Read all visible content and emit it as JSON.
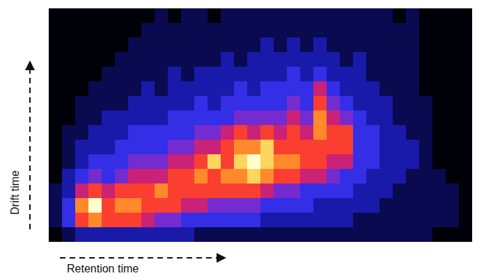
{
  "chart_data": {
    "type": "heatmap",
    "xlabel": "Retention time",
    "ylabel": "Drift time",
    "tick_labels": false,
    "zlim": [
      0,
      9
    ],
    "z": [
      [
        0,
        0,
        0,
        0,
        0,
        0,
        0,
        0,
        1,
        0,
        1,
        1,
        0,
        1,
        1,
        1,
        1,
        1,
        1,
        1,
        1,
        1,
        1,
        1,
        1,
        1,
        0,
        1,
        0,
        0,
        0,
        0
      ],
      [
        0,
        0,
        0,
        0,
        0,
        0,
        0,
        1,
        1,
        1,
        1,
        1,
        1,
        1,
        1,
        1,
        1,
        1,
        1,
        1,
        1,
        1,
        1,
        1,
        1,
        1,
        1,
        1,
        0,
        0,
        0,
        0
      ],
      [
        0,
        0,
        0,
        0,
        0,
        0,
        1,
        1,
        1,
        1,
        1,
        1,
        1,
        1,
        1,
        1,
        2,
        1,
        2,
        1,
        2,
        1,
        1,
        1,
        1,
        1,
        1,
        1,
        0,
        0,
        0,
        0
      ],
      [
        0,
        0,
        0,
        0,
        0,
        1,
        1,
        1,
        1,
        1,
        1,
        1,
        1,
        2,
        1,
        2,
        2,
        2,
        2,
        2,
        2,
        2,
        1,
        2,
        1,
        1,
        1,
        1,
        0,
        0,
        0,
        0
      ],
      [
        0,
        0,
        0,
        0,
        1,
        1,
        1,
        1,
        1,
        2,
        1,
        2,
        2,
        2,
        2,
        2,
        2,
        2,
        3,
        2,
        3,
        2,
        2,
        2,
        1,
        1,
        1,
        1,
        0,
        0,
        0,
        0
      ],
      [
        0,
        0,
        0,
        1,
        1,
        1,
        1,
        2,
        1,
        2,
        2,
        2,
        2,
        2,
        3,
        2,
        3,
        3,
        3,
        3,
        5,
        3,
        2,
        2,
        2,
        1,
        1,
        1,
        0,
        0,
        0,
        0
      ],
      [
        0,
        0,
        1,
        1,
        1,
        1,
        2,
        2,
        2,
        2,
        2,
        3,
        2,
        3,
        3,
        3,
        3,
        3,
        4,
        3,
        6,
        4,
        3,
        2,
        2,
        2,
        1,
        1,
        1,
        0,
        0,
        0
      ],
      [
        0,
        0,
        1,
        1,
        2,
        2,
        2,
        2,
        2,
        3,
        3,
        3,
        3,
        3,
        4,
        4,
        4,
        4,
        5,
        4,
        7,
        5,
        4,
        3,
        2,
        2,
        1,
        1,
        1,
        0,
        0,
        0
      ],
      [
        0,
        1,
        1,
        2,
        2,
        2,
        3,
        3,
        3,
        3,
        3,
        4,
        4,
        5,
        6,
        5,
        6,
        5,
        6,
        5,
        7,
        6,
        6,
        3,
        3,
        2,
        2,
        1,
        1,
        0,
        0,
        0
      ],
      [
        0,
        1,
        2,
        2,
        2,
        3,
        3,
        3,
        3,
        4,
        4,
        5,
        5,
        6,
        7,
        7,
        8,
        6,
        6,
        6,
        6,
        6,
        6,
        3,
        3,
        2,
        2,
        2,
        1,
        0,
        0,
        0
      ],
      [
        0,
        1,
        2,
        3,
        3,
        3,
        4,
        4,
        4,
        5,
        5,
        6,
        8,
        6,
        8,
        9,
        8,
        7,
        7,
        6,
        6,
        5,
        5,
        3,
        3,
        2,
        2,
        2,
        1,
        0,
        0,
        0
      ],
      [
        0,
        2,
        3,
        4,
        3,
        4,
        5,
        5,
        5,
        6,
        6,
        7,
        6,
        7,
        7,
        8,
        7,
        6,
        6,
        5,
        5,
        4,
        3,
        3,
        2,
        2,
        2,
        1,
        1,
        1,
        0,
        0
      ],
      [
        1,
        2,
        5,
        6,
        5,
        6,
        6,
        6,
        7,
        6,
        6,
        6,
        6,
        6,
        6,
        6,
        5,
        4,
        4,
        3,
        3,
        3,
        3,
        2,
        2,
        2,
        1,
        1,
        1,
        1,
        1,
        0
      ],
      [
        1,
        3,
        7,
        9,
        6,
        7,
        7,
        6,
        6,
        6,
        5,
        5,
        4,
        4,
        4,
        4,
        3,
        3,
        3,
        3,
        2,
        2,
        2,
        2,
        2,
        1,
        1,
        1,
        1,
        1,
        1,
        0
      ],
      [
        1,
        3,
        6,
        7,
        6,
        6,
        6,
        5,
        4,
        4,
        3,
        3,
        3,
        3,
        3,
        3,
        2,
        2,
        2,
        2,
        2,
        2,
        2,
        1,
        1,
        1,
        1,
        1,
        1,
        1,
        1,
        0
      ],
      [
        0,
        1,
        2,
        2,
        2,
        2,
        2,
        2,
        2,
        2,
        2,
        1,
        1,
        1,
        1,
        1,
        1,
        1,
        1,
        1,
        1,
        1,
        1,
        1,
        1,
        1,
        1,
        1,
        1,
        0,
        0,
        0
      ]
    ]
  }
}
